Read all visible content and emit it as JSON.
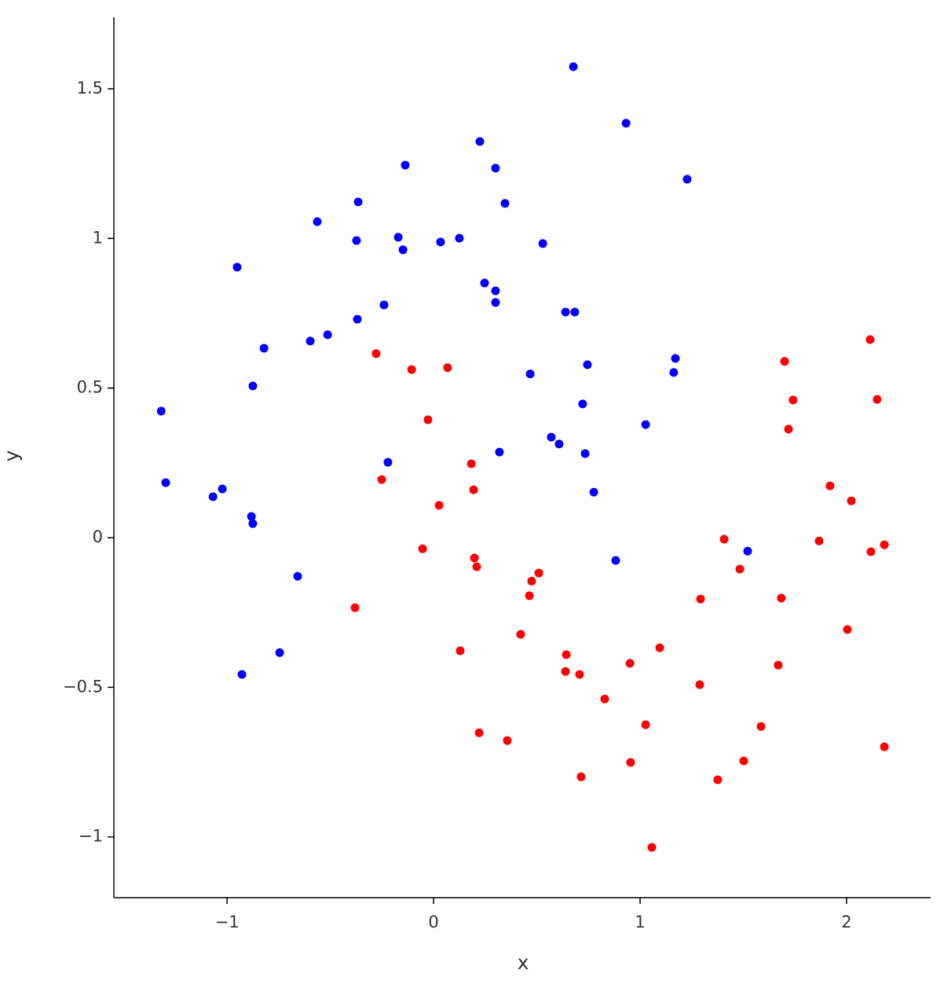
{
  "chart_data": {
    "type": "scatter",
    "xlabel": "x",
    "ylabel": "y",
    "xlim": [
      -1.548,
      2.407
    ],
    "ylim": [
      -1.203,
      1.739
    ],
    "xticks": [
      {
        "value": -1,
        "label": "−1"
      },
      0,
      1,
      2
    ],
    "yticks": [
      {
        "value": -1,
        "label": "−1"
      },
      {
        "value": -0.5,
        "label": "−0.5"
      },
      0,
      0.5,
      1,
      1.5
    ],
    "grid": false,
    "series": [
      {
        "color": "#0000ff",
        "x": [
          -1.319,
          -1.297,
          -1.068,
          -1.023,
          -0.951,
          -0.882,
          -0.875,
          -0.875,
          -0.821,
          -0.928,
          -0.745,
          -0.658,
          -0.597,
          -0.563,
          -0.513,
          -0.373,
          -0.369,
          -0.365,
          -0.24,
          -0.221,
          -0.171,
          -0.148,
          -0.137,
          0.034,
          0.125,
          0.224,
          0.247,
          0.3,
          0.3,
          0.3,
          0.319,
          0.346,
          0.468,
          0.529,
          0.57,
          0.608,
          0.639,
          0.684,
          0.677,
          0.722,
          0.734,
          0.745,
          0.776,
          0.882,
          0.932,
          1.027,
          1.163,
          1.171,
          1.228,
          1.521
        ],
        "values": [
          0.423,
          0.184,
          0.137,
          0.163,
          0.904,
          0.071,
          0.047,
          0.507,
          0.633,
          -0.457,
          -0.384,
          -0.129,
          0.657,
          1.056,
          0.678,
          0.993,
          0.73,
          1.122,
          0.778,
          0.252,
          1.004,
          0.962,
          1.245,
          0.988,
          1.001,
          1.324,
          0.851,
          1.235,
          0.825,
          0.786,
          0.286,
          1.117,
          0.547,
          0.983,
          0.336,
          0.313,
          0.754,
          0.754,
          1.574,
          0.447,
          0.281,
          0.578,
          0.152,
          -0.076,
          1.385,
          0.378,
          0.552,
          0.599,
          1.198,
          -0.045
        ]
      },
      {
        "color": "#ff0000",
        "x": [
          -0.38,
          -0.278,
          -0.251,
          -0.106,
          -0.053,
          -0.027,
          0.027,
          0.068,
          0.129,
          0.183,
          0.194,
          0.198,
          0.209,
          0.221,
          0.357,
          0.422,
          0.464,
          0.475,
          0.51,
          0.643,
          0.639,
          0.707,
          0.715,
          0.829,
          0.951,
          0.954,
          1.027,
          1.057,
          1.095,
          1.289,
          1.293,
          1.376,
          1.407,
          1.483,
          1.502,
          1.586,
          1.669,
          1.684,
          1.7,
          1.719,
          1.741,
          1.867,
          1.92,
          2.004,
          2.023,
          2.114,
          2.118,
          2.148,
          2.183,
          2.183
        ],
        "values": [
          -0.234,
          0.615,
          0.194,
          0.562,
          -0.037,
          0.394,
          0.108,
          0.568,
          -0.378,
          0.247,
          0.16,
          -0.068,
          -0.097,
          -0.652,
          -0.678,
          -0.323,
          -0.194,
          -0.145,
          -0.118,
          -0.391,
          -0.447,
          -0.457,
          -0.799,
          -0.539,
          -0.42,
          -0.751,
          -0.625,
          -1.035,
          -0.368,
          -0.491,
          -0.205,
          -0.809,
          -0.005,
          -0.105,
          -0.746,
          -0.631,
          -0.426,
          -0.202,
          0.589,
          0.363,
          0.46,
          -0.011,
          0.173,
          -0.307,
          0.123,
          0.662,
          -0.047,
          0.462,
          -0.024,
          -0.699
        ]
      }
    ]
  }
}
